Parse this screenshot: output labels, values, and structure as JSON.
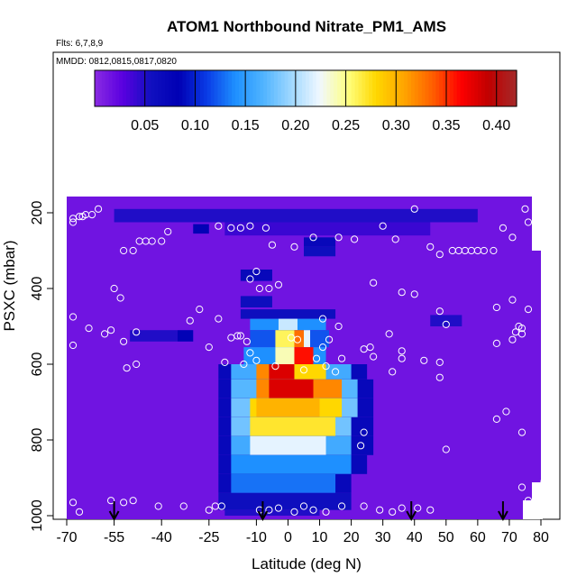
{
  "chart_data": {
    "type": "heatmap",
    "title": "ATOM1 Northbound Nitrate_PM1_AMS",
    "subtitle_flights": "Flts: 6,7,8,9",
    "subtitle_dates": "MMDD: 0812,0815,0817,0820",
    "xlabel": "Latitude (deg N)",
    "ylabel": "PSXC (mbar)",
    "xlim": [
      -70,
      85
    ],
    "ylim": [
      1000,
      150
    ],
    "x_ticks": [
      -70,
      -55,
      -40,
      -25,
      -10,
      0,
      10,
      20,
      30,
      40,
      50,
      60,
      70,
      80
    ],
    "x_tick_labels": [
      "-70",
      "-55",
      "-40",
      "-25",
      "-10",
      "0",
      "10",
      "20",
      "30",
      "40",
      "50",
      "60",
      "70",
      "80"
    ],
    "y_ticks": [
      200,
      400,
      600,
      800,
      1000
    ],
    "y_tick_labels": [
      "200",
      "400",
      "600",
      "800",
      "1000"
    ],
    "colorbar": {
      "range": [
        0,
        0.42
      ],
      "ticks": [
        0.05,
        0.1,
        0.15,
        0.2,
        0.25,
        0.3,
        0.35,
        0.4
      ],
      "tick_labels": [
        "0.05",
        "0.10",
        "0.15",
        "0.20",
        "0.25",
        "0.30",
        "0.35",
        "0.40"
      ],
      "colors": [
        "#8a2be2",
        "#5a00e0",
        "#1010c0",
        "#0000b4",
        "#0a3ce6",
        "#1e90ff",
        "#50b4ff",
        "#a0d8ff",
        "#f0f8ff",
        "#ffff80",
        "#ffd700",
        "#ffa500",
        "#ff6000",
        "#ff0000",
        "#c00000",
        "#a52a2a"
      ]
    },
    "background_value": 0.015,
    "nitrate_field": [
      {
        "lat_min": -55,
        "lat_max": 60,
        "p_min": 190,
        "p_max": 225,
        "value": 0.05
      },
      {
        "lat_min": -30,
        "lat_max": -25,
        "p_min": 230,
        "p_max": 255,
        "value": 0.08
      },
      {
        "lat_min": -20,
        "lat_max": 45,
        "p_min": 225,
        "p_max": 260,
        "value": 0.04
      },
      {
        "lat_min": 5,
        "lat_max": 15,
        "p_min": 265,
        "p_max": 290,
        "value": 0.07
      },
      {
        "lat_min": 5,
        "lat_max": 15,
        "p_min": 290,
        "p_max": 315,
        "value": 0.06
      },
      {
        "lat_min": -15,
        "lat_max": -5,
        "p_min": 350,
        "p_max": 380,
        "value": 0.07
      },
      {
        "lat_min": -15,
        "lat_max": -5,
        "p_min": 420,
        "p_max": 450,
        "value": 0.06
      },
      {
        "lat_min": 45,
        "lat_max": 55,
        "p_min": 470,
        "p_max": 500,
        "value": 0.05
      },
      {
        "lat_min": -50,
        "lat_max": -35,
        "p_min": 510,
        "p_max": 540,
        "value": 0.05
      },
      {
        "lat_min": -35,
        "lat_max": -30,
        "p_min": 510,
        "p_max": 540,
        "value": 0.08
      },
      {
        "lat_min": -15,
        "lat_max": 15,
        "p_min": 455,
        "p_max": 480,
        "value": 0.06
      },
      {
        "lat_min": -12,
        "lat_max": 12,
        "p_min": 480,
        "p_max": 510,
        "value": 0.14
      },
      {
        "lat_min": -3,
        "lat_max": 3,
        "p_min": 480,
        "p_max": 510,
        "value": 0.21
      },
      {
        "lat_min": -12,
        "lat_max": 13,
        "p_min": 510,
        "p_max": 555,
        "value": 0.12
      },
      {
        "lat_min": -4,
        "lat_max": 2,
        "p_min": 510,
        "p_max": 555,
        "value": 0.26
      },
      {
        "lat_min": 2,
        "lat_max": 5,
        "p_min": 510,
        "p_max": 555,
        "value": 0.33
      },
      {
        "lat_min": 5,
        "lat_max": 7,
        "p_min": 510,
        "p_max": 555,
        "value": 0.22
      },
      {
        "lat_min": -14,
        "lat_max": 12,
        "p_min": 555,
        "p_max": 600,
        "value": 0.14
      },
      {
        "lat_min": -4,
        "lat_max": 2,
        "p_min": 555,
        "p_max": 600,
        "value": 0.24
      },
      {
        "lat_min": 2,
        "lat_max": 8,
        "p_min": 555,
        "p_max": 600,
        "value": 0.36
      },
      {
        "lat_min": -22,
        "lat_max": 25,
        "p_min": 600,
        "p_max": 640,
        "value": 0.07
      },
      {
        "lat_min": -18,
        "lat_max": 20,
        "p_min": 600,
        "p_max": 640,
        "value": 0.16
      },
      {
        "lat_min": -10,
        "lat_max": -6,
        "p_min": 600,
        "p_max": 640,
        "value": 0.32
      },
      {
        "lat_min": -6,
        "lat_max": 2,
        "p_min": 600,
        "p_max": 640,
        "value": 0.38
      },
      {
        "lat_min": 2,
        "lat_max": 12,
        "p_min": 600,
        "p_max": 640,
        "value": 0.28
      },
      {
        "lat_min": -22,
        "lat_max": 27,
        "p_min": 640,
        "p_max": 690,
        "value": 0.07
      },
      {
        "lat_min": -18,
        "lat_max": 22,
        "p_min": 640,
        "p_max": 690,
        "value": 0.17
      },
      {
        "lat_min": -10,
        "lat_max": 17,
        "p_min": 640,
        "p_max": 690,
        "value": 0.32
      },
      {
        "lat_min": -6,
        "lat_max": 8,
        "p_min": 640,
        "p_max": 690,
        "value": 0.38
      },
      {
        "lat_min": -22,
        "lat_max": 27,
        "p_min": 690,
        "p_max": 740,
        "value": 0.07
      },
      {
        "lat_min": -18,
        "lat_max": 22,
        "p_min": 690,
        "p_max": 740,
        "value": 0.18
      },
      {
        "lat_min": -12,
        "lat_max": 17,
        "p_min": 690,
        "p_max": 740,
        "value": 0.28
      },
      {
        "lat_min": -10,
        "lat_max": 10,
        "p_min": 690,
        "p_max": 740,
        "value": 0.3
      },
      {
        "lat_min": -22,
        "lat_max": 27,
        "p_min": 740,
        "p_max": 790,
        "value": 0.07
      },
      {
        "lat_min": -18,
        "lat_max": 20,
        "p_min": 740,
        "p_max": 790,
        "value": 0.18
      },
      {
        "lat_min": -12,
        "lat_max": 15,
        "p_min": 740,
        "p_max": 790,
        "value": 0.27
      },
      {
        "lat_min": -22,
        "lat_max": 27,
        "p_min": 790,
        "p_max": 840,
        "value": 0.07
      },
      {
        "lat_min": -18,
        "lat_max": 20,
        "p_min": 790,
        "p_max": 840,
        "value": 0.16
      },
      {
        "lat_min": -12,
        "lat_max": 12,
        "p_min": 790,
        "p_max": 840,
        "value": 0.22
      },
      {
        "lat_min": -22,
        "lat_max": 25,
        "p_min": 840,
        "p_max": 890,
        "value": 0.07
      },
      {
        "lat_min": -18,
        "lat_max": 20,
        "p_min": 840,
        "p_max": 890,
        "value": 0.14
      },
      {
        "lat_min": -22,
        "lat_max": 20,
        "p_min": 890,
        "p_max": 940,
        "value": 0.07
      },
      {
        "lat_min": -18,
        "lat_max": 15,
        "p_min": 890,
        "p_max": 940,
        "value": 0.13
      },
      {
        "lat_min": -22,
        "lat_max": 20,
        "p_min": 940,
        "p_max": 985,
        "value": 0.06
      },
      {
        "lat_min": -20,
        "lat_max": 10,
        "p_min": 985,
        "p_max": 1000,
        "value": 0.05
      }
    ],
    "flight_points": [
      [
        -68,
        215
      ],
      [
        -66,
        210
      ],
      [
        -65,
        210
      ],
      [
        -64,
        205
      ],
      [
        -62,
        205
      ],
      [
        -60,
        190
      ],
      [
        -68,
        225
      ],
      [
        -47,
        275
      ],
      [
        -45,
        275
      ],
      [
        -43,
        275
      ],
      [
        -40,
        275
      ],
      [
        -38,
        250
      ],
      [
        -52,
        300
      ],
      [
        -49,
        300
      ],
      [
        -22,
        235
      ],
      [
        -18,
        240
      ],
      [
        -15,
        240
      ],
      [
        -12,
        235
      ],
      [
        -7,
        240
      ],
      [
        -5,
        285
      ],
      [
        2,
        290
      ],
      [
        8,
        265
      ],
      [
        16,
        265
      ],
      [
        21,
        270
      ],
      [
        30,
        235
      ],
      [
        34,
        270
      ],
      [
        40,
        190
      ],
      [
        45,
        290
      ],
      [
        48,
        310
      ],
      [
        52,
        300
      ],
      [
        54,
        300
      ],
      [
        56,
        300
      ],
      [
        58,
        300
      ],
      [
        60,
        300
      ],
      [
        62,
        300
      ],
      [
        65,
        300
      ],
      [
        68,
        240
      ],
      [
        71,
        265
      ],
      [
        75,
        190
      ],
      [
        76,
        225
      ],
      [
        -55,
        400
      ],
      [
        -53,
        425
      ],
      [
        -28,
        455
      ],
      [
        -31,
        485
      ],
      [
        -12,
        375
      ],
      [
        -10,
        355
      ],
      [
        -9,
        400
      ],
      [
        -6,
        400
      ],
      [
        -3,
        390
      ],
      [
        27,
        385
      ],
      [
        36,
        410
      ],
      [
        40,
        415
      ],
      [
        48,
        460
      ],
      [
        66,
        450
      ],
      [
        71,
        430
      ],
      [
        76,
        455
      ],
      [
        -68,
        475
      ],
      [
        -63,
        505
      ],
      [
        -58,
        520
      ],
      [
        -56,
        510
      ],
      [
        -48,
        515
      ],
      [
        -22,
        480
      ],
      [
        -18,
        530
      ],
      [
        -16,
        525
      ],
      [
        -15,
        525
      ],
      [
        -13,
        540
      ],
      [
        -12,
        570
      ],
      [
        1,
        530
      ],
      [
        3,
        535
      ],
      [
        11,
        480
      ],
      [
        11,
        555
      ],
      [
        16,
        500
      ],
      [
        13,
        535
      ],
      [
        17,
        585
      ],
      [
        24,
        560
      ],
      [
        26,
        555
      ],
      [
        32,
        520
      ],
      [
        36,
        565
      ],
      [
        43,
        590
      ],
      [
        48,
        595
      ],
      [
        50,
        495
      ],
      [
        66,
        545
      ],
      [
        71,
        535
      ],
      [
        72,
        515
      ],
      [
        73,
        500
      ],
      [
        74,
        505
      ],
      [
        74,
        520
      ],
      [
        -68,
        550
      ],
      [
        -52,
        540
      ],
      [
        -51,
        610
      ],
      [
        -48,
        600
      ],
      [
        -25,
        555
      ],
      [
        -20,
        595
      ],
      [
        -14,
        600
      ],
      [
        -10,
        590
      ],
      [
        -4,
        605
      ],
      [
        5,
        615
      ],
      [
        9,
        585
      ],
      [
        12,
        605
      ],
      [
        15,
        620
      ],
      [
        27,
        580
      ],
      [
        33,
        620
      ],
      [
        36,
        585
      ],
      [
        48,
        635
      ],
      [
        66,
        745
      ],
      [
        69,
        725
      ],
      [
        74,
        780
      ],
      [
        50,
        825
      ],
      [
        23,
        815
      ],
      [
        24,
        780
      ],
      [
        -68,
        965
      ],
      [
        -66,
        990
      ],
      [
        -56,
        960
      ],
      [
        -52,
        965
      ],
      [
        -49,
        960
      ],
      [
        -41,
        975
      ],
      [
        -33,
        975
      ],
      [
        -25,
        985
      ],
      [
        -23,
        975
      ],
      [
        -21,
        975
      ],
      [
        -9,
        985
      ],
      [
        -6,
        985
      ],
      [
        -3,
        980
      ],
      [
        2,
        990
      ],
      [
        5,
        975
      ],
      [
        8,
        985
      ],
      [
        12,
        990
      ],
      [
        17,
        975
      ],
      [
        24,
        975
      ],
      [
        29,
        985
      ],
      [
        33,
        990
      ],
      [
        36,
        980
      ],
      [
        41,
        980
      ],
      [
        45,
        985
      ],
      [
        74,
        925
      ],
      [
        76,
        960
      ],
      [
        81,
        910
      ]
    ],
    "arrows_lat": [
      -55,
      -8,
      39,
      68
    ]
  }
}
